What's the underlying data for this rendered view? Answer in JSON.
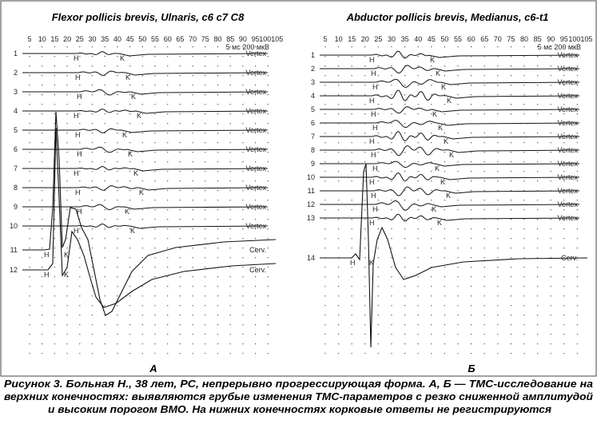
{
  "panels": [
    {
      "title": "Flexor pollicis brevis, Ulnaris, c6 c7 C8",
      "ticks": [
        "5",
        "10",
        "15",
        "20",
        "25",
        "30",
        "35",
        "40",
        "45",
        "50",
        "55",
        "60",
        "65",
        "70",
        "75",
        "80",
        "85",
        "90",
        "95",
        "100105"
      ],
      "scale": "5 мс 200 мкВ",
      "rows": [
        {
          "num": "1",
          "label": "Vertex",
          "h": "H",
          "k": "K"
        },
        {
          "num": "2",
          "label": "Vertex",
          "h": "H",
          "k": "K"
        },
        {
          "num": "3",
          "label": "Vertex",
          "h": "H",
          "k": "K"
        },
        {
          "num": "4",
          "label": "Vertex",
          "h": "H",
          "k": "K"
        },
        {
          "num": "5",
          "label": "Vertex",
          "h": "H",
          "k": "K"
        },
        {
          "num": "6",
          "label": "Vertex",
          "h": "H",
          "k": "K"
        },
        {
          "num": "7",
          "label": "Vertex",
          "h": "H",
          "k": "K"
        },
        {
          "num": "8",
          "label": "Vertex",
          "h": "H",
          "k": "K"
        },
        {
          "num": "9",
          "label": "Vertex",
          "h": "H",
          "k": "K"
        },
        {
          "num": "10",
          "label": "Vertex",
          "h": "H",
          "k": "K"
        },
        {
          "num": "11",
          "label": "Cerv.",
          "h": "H",
          "k": "K"
        },
        {
          "num": "12",
          "label": "Cerv.",
          "h": "H",
          "k": "K"
        }
      ],
      "letter": "А"
    },
    {
      "title": "Abductor pollicis brevis, Medianus, c6-t1",
      "ticks": [
        "5",
        "10",
        "15",
        "20",
        "25",
        "30",
        "35",
        "40",
        "45",
        "50",
        "55",
        "60",
        "65",
        "70",
        "75",
        "80",
        "85",
        "90",
        "95",
        "100105"
      ],
      "scale": "5 мс 200 мкВ",
      "rows": [
        {
          "num": "1",
          "label": "Vertex",
          "h": "H",
          "k": "K"
        },
        {
          "num": "2",
          "label": "Vertex",
          "h": "H",
          "k": "K"
        },
        {
          "num": "3",
          "label": "Vertex",
          "h": "H",
          "k": "K"
        },
        {
          "num": "4",
          "label": "Vertex",
          "h": "H",
          "k": "K"
        },
        {
          "num": "5",
          "label": "Vertex",
          "h": "H",
          "k": "K"
        },
        {
          "num": "6",
          "label": "Vertex",
          "h": "H",
          "k": "K"
        },
        {
          "num": "7",
          "label": "Vertex",
          "h": "H",
          "k": "K"
        },
        {
          "num": "8",
          "label": "Vertex",
          "h": "H",
          "k": "K"
        },
        {
          "num": "9",
          "label": "Vertex",
          "h": "H",
          "k": "K"
        },
        {
          "num": "10",
          "label": "Vertex",
          "h": "H",
          "k": "K"
        },
        {
          "num": "11",
          "label": "Vertex",
          "h": "H",
          "k": "K"
        },
        {
          "num": "12",
          "label": "Vertex",
          "h": "H",
          "k": "K"
        },
        {
          "num": "13",
          "label": "Vertex",
          "h": "H",
          "k": "K"
        },
        {
          "num": "14",
          "label": "Cerv.",
          "h": "H",
          "k": "K"
        }
      ],
      "letter": "Б"
    }
  ],
  "caption": [
    "Рисунок 3. Больная Н., 38 лет, РС, непрерывно прогрессирующая форма. А, Б — ТМС-исследование на",
    "верхних конечностях: выявляются грубые изменения ТМС-параметров с резко сниженной амплитудой",
    "и высоким порогом ВМО. На нижних конечностях корковые ответы не регистрируются"
  ]
}
